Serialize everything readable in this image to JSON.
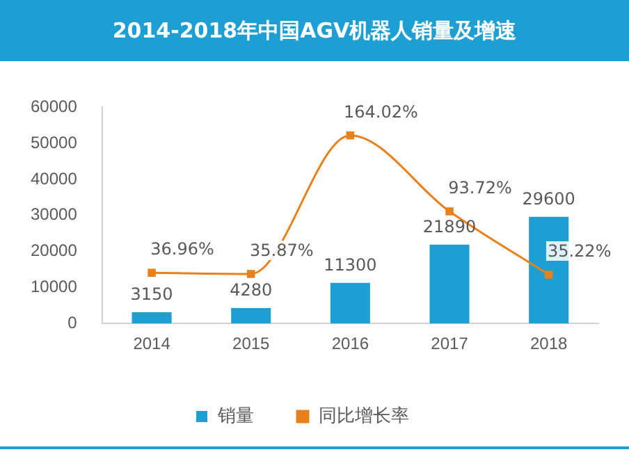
{
  "chart_data": {
    "type": "bar",
    "title": "2014-2018年中国AGV机器人销量及增速",
    "categories": [
      "2014",
      "2015",
      "2016",
      "2017",
      "2018"
    ],
    "series": [
      {
        "name": "销量",
        "color": "#1e9fd4",
        "values": [
          3150,
          4280,
          11300,
          21890,
          29600
        ]
      },
      {
        "name": "同比增长率",
        "type": "line",
        "axis": "y2",
        "color": "#e8801c",
        "marker": "square",
        "values": [
          36.96,
          35.87,
          164.02,
          93.72,
          35.22
        ],
        "value_labels": [
          "36.96%",
          "35.87%",
          "164.02%",
          "93.72%",
          "35.22%"
        ]
      }
    ],
    "ylim": [
      0,
      60000
    ],
    "yticks": [
      0,
      10000,
      20000,
      30000,
      40000,
      50000,
      60000
    ],
    "y2lim": [
      -10,
      190
    ],
    "data_labels": true,
    "grid": false,
    "legend": "bottom"
  }
}
